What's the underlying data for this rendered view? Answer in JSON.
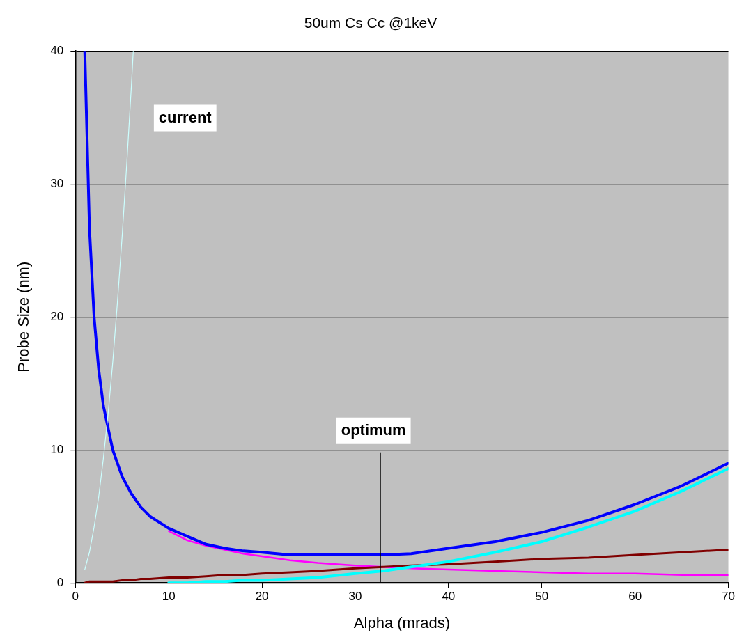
{
  "chart_data": {
    "type": "line",
    "title": "50um Cs Cc @1keV",
    "xlabel": "Alpha (mrads)",
    "ylabel": "Probe Size (nm)",
    "x": [
      1,
      1.5,
      2,
      2.5,
      3,
      4,
      5,
      6,
      7,
      8,
      10,
      12,
      14,
      16,
      18,
      20,
      23,
      26,
      30,
      33,
      36,
      40,
      45,
      50,
      55,
      60,
      65,
      70
    ],
    "series": [
      {
        "color": "#ff00ff",
        "values": [
          null,
          null,
          null,
          null,
          null,
          null,
          null,
          null,
          null,
          null,
          3.9,
          3.2,
          2.8,
          2.5,
          2.2,
          2,
          1.7,
          1.5,
          1.3,
          1.2,
          1.1,
          1,
          0.9,
          0.8,
          0.7,
          0.7,
          0.6,
          0.6
        ]
      },
      {
        "color": "#800000",
        "values": [
          0,
          0.1,
          0.1,
          0.1,
          0.1,
          0.1,
          0.2,
          0.2,
          0.3,
          0.3,
          0.4,
          0.4,
          0.5,
          0.6,
          0.6,
          0.7,
          0.8,
          0.9,
          1.1,
          1.2,
          1.3,
          1.4,
          1.6,
          1.8,
          1.9,
          2.1,
          2.3,
          2.5
        ]
      },
      {
        "color": "#00ffff",
        "values": [
          null,
          null,
          null,
          null,
          null,
          null,
          null,
          null,
          null,
          null,
          0,
          0,
          0.1,
          0.1,
          0.2,
          0.2,
          0.3,
          0.4,
          0.7,
          0.9,
          1.2,
          1.6,
          2.3,
          3.1,
          4.2,
          5.4,
          6.9,
          8.6
        ]
      },
      {
        "color": "#0000ff",
        "values": [
          40,
          26.7,
          20,
          16,
          13.3,
          10,
          8,
          6.7,
          5.7,
          5,
          4.1,
          3.5,
          2.9,
          2.6,
          2.4,
          2.3,
          2.1,
          2.1,
          2.1,
          2.1,
          2.2,
          2.6,
          3.1,
          3.8,
          4.7,
          5.9,
          7.3,
          9
        ]
      },
      {
        "color": "#ccffff",
        "x": [
          1,
          1.5,
          2,
          2.5,
          3,
          3.5,
          4,
          4.5,
          5,
          5.5,
          6,
          6.2
        ],
        "values": [
          1,
          2.3,
          4.2,
          6.5,
          9.4,
          12.7,
          16.6,
          21.1,
          26,
          31.5,
          37.4,
          40
        ]
      }
    ],
    "xlim": [
      0,
      70
    ],
    "xticks": [
      0,
      10,
      20,
      30,
      40,
      50,
      60,
      70
    ],
    "ylim": [
      0,
      40
    ],
    "yticks": [
      0,
      10,
      20,
      30,
      40
    ],
    "grid": "y",
    "marker": "none",
    "line_style": "solid",
    "legend": false,
    "ref_lines": [
      {
        "axis": "x",
        "value": 32.7,
        "label": "optimum"
      }
    ],
    "annotations": [
      "current"
    ]
  }
}
